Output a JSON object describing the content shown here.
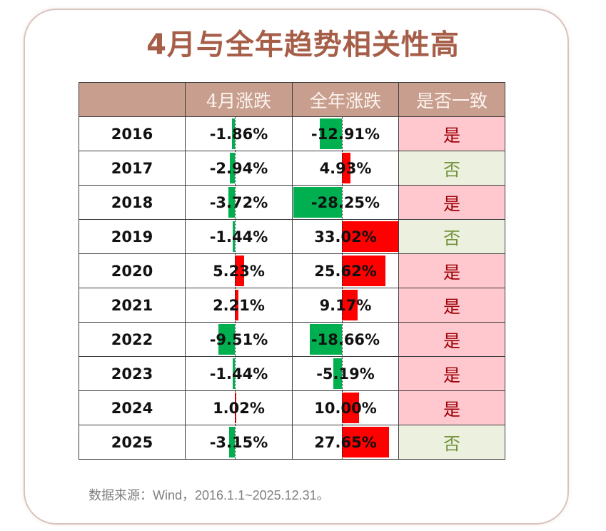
{
  "title": "4月与全年趋势相关性高",
  "table": {
    "headers": [
      "",
      "4月涨跌",
      "全年涨跌",
      "是否一致"
    ],
    "rows": [
      {
        "year": "2016",
        "april": "-1.86%",
        "april_value": -1.86,
        "annual": "-12.91%",
        "annual_value": -12.91,
        "consistent": "是"
      },
      {
        "year": "2017",
        "april": "-2.94%",
        "april_value": -2.94,
        "annual": "4.93%",
        "annual_value": 4.93,
        "consistent": "否"
      },
      {
        "year": "2018",
        "april": "-3.72%",
        "april_value": -3.72,
        "annual": "-28.25%",
        "annual_value": -28.25,
        "consistent": "是"
      },
      {
        "year": "2019",
        "april": "-1.44%",
        "april_value": -1.44,
        "annual": "33.02%",
        "annual_value": 33.02,
        "consistent": "否"
      },
      {
        "year": "2020",
        "april": "5.23%",
        "april_value": 5.23,
        "annual": "25.62%",
        "annual_value": 25.62,
        "consistent": "是"
      },
      {
        "year": "2021",
        "april": "2.21%",
        "april_value": 2.21,
        "annual": "9.17%",
        "annual_value": 9.17,
        "consistent": "是"
      },
      {
        "year": "2022",
        "april": "-9.51%",
        "april_value": -9.51,
        "annual": "-18.66%",
        "annual_value": -18.66,
        "consistent": "是"
      },
      {
        "year": "2023",
        "april": "-1.44%",
        "april_value": -1.44,
        "annual": "-5.19%",
        "annual_value": -5.19,
        "consistent": "是"
      },
      {
        "year": "2024",
        "april": "1.02%",
        "april_value": 1.02,
        "annual": "10.00%",
        "annual_value": 10.0,
        "consistent": "是"
      },
      {
        "year": "2025",
        "april": "-3.15%",
        "april_value": -3.15,
        "annual": "27.65%",
        "annual_value": 27.65,
        "consistent": "否"
      }
    ]
  },
  "colors": {
    "title": "#a65e48",
    "header_bg": "#c89f8e",
    "header_text": "#fdf3ee",
    "bar_positive": "#ff0000",
    "bar_negative": "#00b050",
    "yes_bg": "#ffc7ce",
    "yes_text": "#9c0006",
    "no_bg": "#ebf1de",
    "no_text": "#76933c"
  },
  "source": "数据来源：Wind，2016.1.1~2025.12.31。"
}
